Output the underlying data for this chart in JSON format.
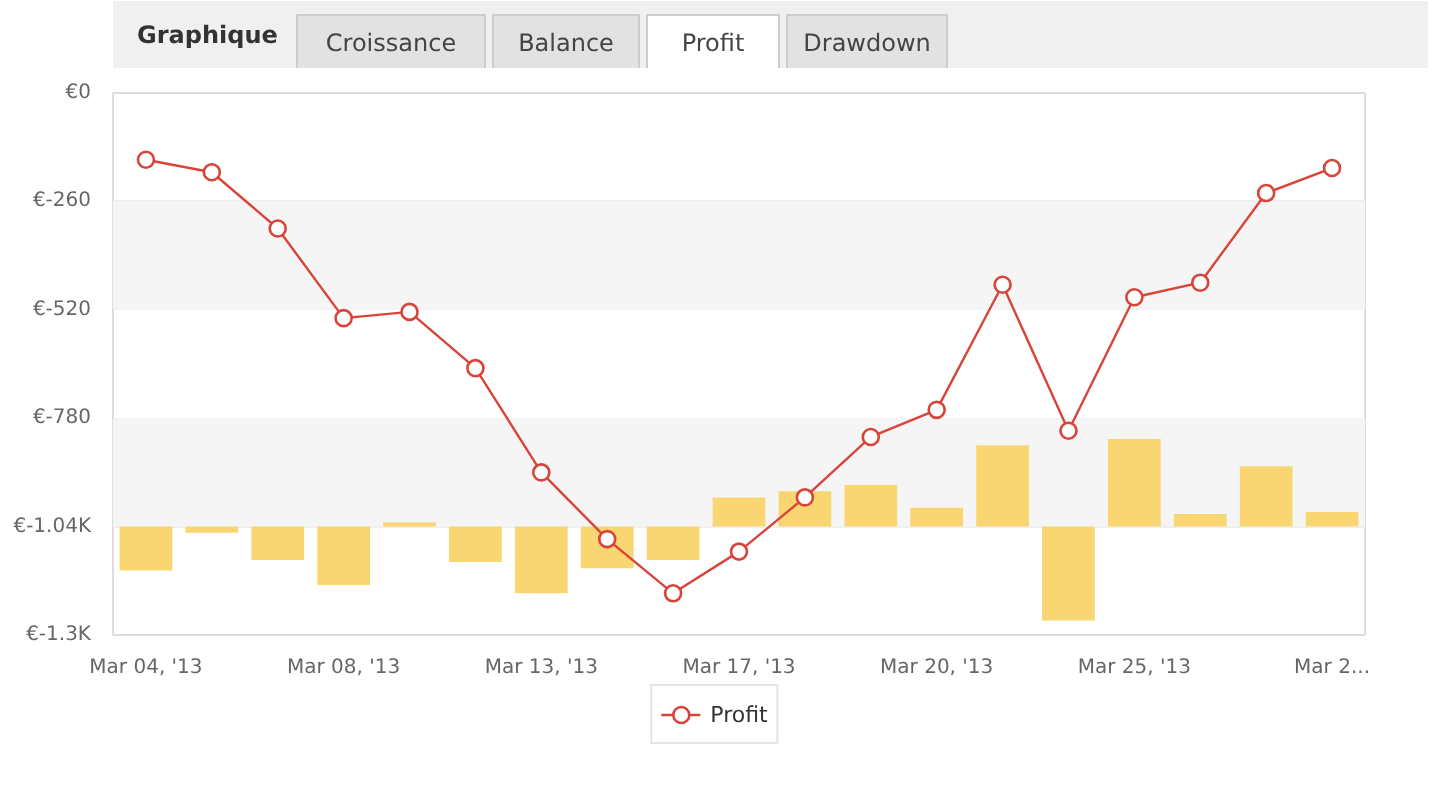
{
  "chart_data": {
    "type": "line",
    "title": "Graphique",
    "annotations": [
      "Croissance",
      "Balance",
      "Profit",
      "Drawdown"
    ],
    "categories": [
      "Mar 04, '13",
      null,
      null,
      "Mar 08, '13",
      null,
      null,
      "Mar 13, '13",
      null,
      null,
      "Mar 17, '13",
      null,
      null,
      "Mar 20, '13",
      null,
      null,
      "Mar 25, '13",
      null,
      null,
      "Mar 2..."
    ],
    "series": [
      {
        "type": "bar",
        "color": "#f9d672",
        "base": [
          -1040,
          -1040,
          -1040,
          -1040,
          -1040,
          -1040,
          -1040,
          -1040,
          -1040,
          -1040,
          -1040,
          -1040,
          -1040,
          -1040,
          -1040,
          -1040,
          -1040,
          -1040,
          -1040
        ],
        "values": [
          -105,
          -15,
          -80,
          -140,
          10,
          -85,
          -160,
          -100,
          -80,
          70,
          85,
          100,
          45,
          195,
          -225,
          210,
          30,
          145,
          35
        ]
      },
      {
        "name": "Profit",
        "color": "#d9443a",
        "marker": "circle",
        "values": [
          -160,
          -190,
          -325,
          -540,
          -525,
          -660,
          -910,
          -1070,
          -1200,
          -1100,
          -970,
          -825,
          -760,
          -460,
          -810,
          -490,
          -455,
          -240,
          -180
        ]
      }
    ],
    "ylim": [
      -1300,
      0
    ],
    "yticks": [
      {
        "value": 0,
        "label": "€0"
      },
      {
        "value": -260,
        "label": "€-260"
      },
      {
        "value": -520,
        "label": "€-520"
      },
      {
        "value": -780,
        "label": "€-780"
      },
      {
        "value": -1040,
        "label": "€-1.04K"
      },
      {
        "value": -1300,
        "label": "€-1.3K"
      }
    ],
    "bands": [
      {
        "axis": "y",
        "from": -520,
        "to": -260,
        "color": "#f5f5f5"
      },
      {
        "axis": "y",
        "from": -1040,
        "to": -780,
        "color": "#f5f5f5"
      }
    ],
    "grid": "y",
    "legend": "bottom"
  }
}
